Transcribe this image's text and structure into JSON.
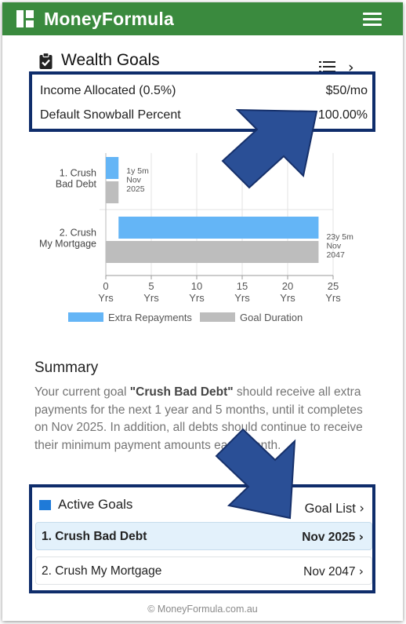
{
  "header": {
    "app_title": "MoneyFormula",
    "logo_icon": "grid-logo-icon",
    "menu_icon": "hamburger-menu-icon",
    "brand_color": "#3a8a3e"
  },
  "page": {
    "title": "Wealth Goals",
    "title_icon": "clipboard-check-icon",
    "list_icon": "list-icon",
    "next_icon": "chevron-right-icon"
  },
  "allocation": {
    "income_label": "Income Allocated (0.5%)",
    "income_value": "$50/mo",
    "snowball_label": "Default Snowball Percent",
    "snowball_value": "100.00%"
  },
  "chart_data": {
    "type": "bar",
    "orientation": "horizontal",
    "categories": [
      "1. Crush Bad Debt",
      "2. Crush My Mortgage"
    ],
    "category_labels": [
      [
        "1. Crush",
        "Bad Debt"
      ],
      [
        "2. Crush",
        "My Mortgage"
      ]
    ],
    "series": [
      {
        "name": "Extra Repayments",
        "color": "#64b5f6",
        "ranges": [
          [
            0,
            1.4
          ],
          [
            1.4,
            23.4
          ]
        ]
      },
      {
        "name": "Goal Duration",
        "color": "#bdbdbd",
        "values": [
          1.4,
          23.4
        ]
      }
    ],
    "annotations": [
      [
        "1y 5m",
        "Nov",
        "2025"
      ],
      [
        "23y 5m",
        "Nov",
        "2047"
      ]
    ],
    "xlim": [
      0,
      25
    ],
    "xticks": [
      0,
      5,
      10,
      15,
      20,
      25
    ],
    "xtick_unit": "Yrs",
    "grid": true,
    "legend": "bottom"
  },
  "summary": {
    "title": "Summary",
    "text_before": "Your current goal ",
    "goal_quoted": "\"Crush Bad Debt\"",
    "text_after": " should receive all extra payments for the next 1 year and 5 months, until it completes on Nov 2025. In addition, all debts should continue to receive their minimum payment amounts each month."
  },
  "active_goals": {
    "title": "Active Goals",
    "link_label": "Goal List",
    "accent": "#1f7ad8",
    "goals": [
      {
        "name": "1. Crush Bad Debt",
        "date": "Nov 2025",
        "active": true
      },
      {
        "name": "2. Crush My Mortgage",
        "date": "Nov 2047",
        "active": false
      }
    ]
  },
  "footer": {
    "text": "© MoneyFormula.com.au"
  },
  "annotation_color": "#2a4f96"
}
